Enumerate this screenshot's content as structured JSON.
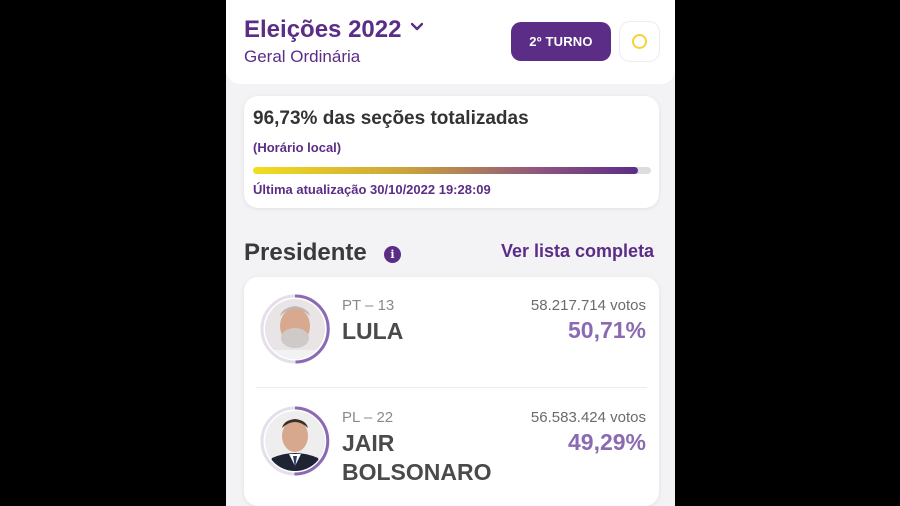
{
  "header": {
    "title": "Eleições 2022",
    "subtitle": "Geral Ordinária",
    "turno_label": "2º TURNO"
  },
  "progress": {
    "title": "96,73% das seções totalizadas",
    "local_time": "(Horário local)",
    "fraction": 0.9673,
    "last_update": "Última atualização 30/10/2022 19:28:09"
  },
  "section": {
    "title": "Presidente",
    "info_icon": "i",
    "ver_lista": "Ver lista completa"
  },
  "candidates": [
    {
      "party": "PT – 13",
      "name_lines": [
        "LULA"
      ],
      "votes": "58.217.714 votos",
      "percent": "50,71%",
      "share": 0.5071
    },
    {
      "party": "PL – 22",
      "name_lines": [
        "JAIR",
        "BOLSONARO"
      ],
      "votes": "56.583.424 votos",
      "percent": "49,29%",
      "share": 0.4929
    }
  ],
  "colors": {
    "accent": "#5b2d86",
    "percent": "#8a6bb3",
    "sun": "#f5d23a"
  }
}
